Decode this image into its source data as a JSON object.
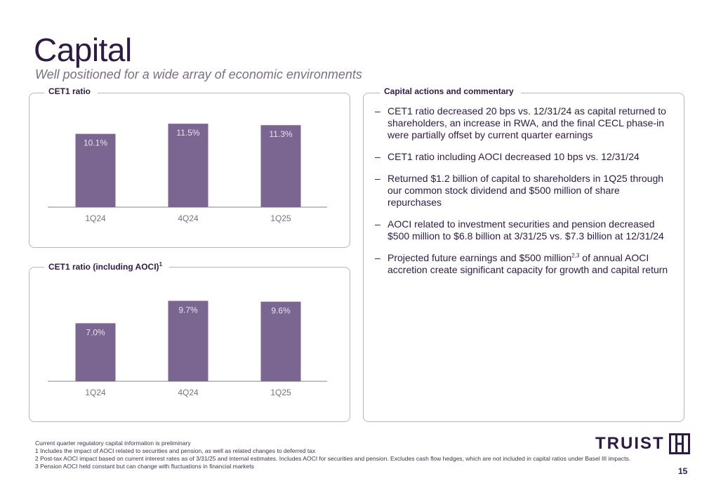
{
  "header": {
    "title": "Capital",
    "subtitle": "Well positioned for a wide array of economic environments"
  },
  "panels": {
    "cet1_label": "CET1 ratio",
    "cet1_aoci_label": "CET1 ratio (including AOCI)",
    "cet1_aoci_sup": "1",
    "commentary_label": "Capital actions and commentary"
  },
  "chart_data": [
    {
      "type": "bar",
      "title": "CET1 ratio",
      "categories": [
        "1Q24",
        "4Q24",
        "1Q25"
      ],
      "values": [
        10.1,
        11.5,
        11.3
      ],
      "value_labels": [
        "10.1%",
        "11.5%",
        "11.3%"
      ],
      "ylim": [
        0,
        12
      ],
      "bar_color": "#7b6691",
      "grid": false
    },
    {
      "type": "bar",
      "title": "CET1 ratio (including AOCI)",
      "categories": [
        "1Q24",
        "4Q24",
        "1Q25"
      ],
      "values": [
        7.0,
        9.7,
        9.6
      ],
      "value_labels": [
        "7.0%",
        "9.7%",
        "9.6%"
      ],
      "ylim": [
        0,
        10.5
      ],
      "bar_color": "#7b6691",
      "grid": false
    }
  ],
  "commentary": [
    {
      "text": "CET1 ratio decreased 20 bps vs. 12/31/24 as capital returned to shareholders, an increase in RWA, and the final CECL phase-in were partially offset by current quarter earnings"
    },
    {
      "text": "CET1 ratio including AOCI decreased 10 bps vs. 12/31/24"
    },
    {
      "text": "Returned $1.2 billion of capital to shareholders in 1Q25 through our common stock dividend and $500 million of share repurchases"
    },
    {
      "text": "AOCI related to investment securities and pension decreased $500 million to $6.8 billion  at 3/31/25 vs. $7.3 billion at 12/31/24"
    },
    {
      "text_before": "Projected future earnings and $500 million",
      "sup": "2,3",
      "text_after": " of annual AOCI accretion create significant capacity for growth and capital return"
    }
  ],
  "dash": "–",
  "footnotes": [
    "Current quarter regulatory capital information is preliminary",
    "1 Includes the impact of AOCI related to securities and pension, as well as related changes to deferred tax",
    "2 Post-tax AOCI impact based on current interest rates as of 3/31/25 and internal estimates. Includes AOCI for securities and pension. Excludes cash flow hedges, which are not included in capital ratios under Basel III impacts.",
    "3 Pension AOCI held constant but can change with fluctuations in financial markets"
  ],
  "logo": {
    "text": "TRUIST",
    "mark": "truist-h-mark-icon"
  },
  "page_number": "15",
  "colors": {
    "brand": "#2e1a47",
    "bar": "#7b6691",
    "border": "#b9b3bf"
  }
}
